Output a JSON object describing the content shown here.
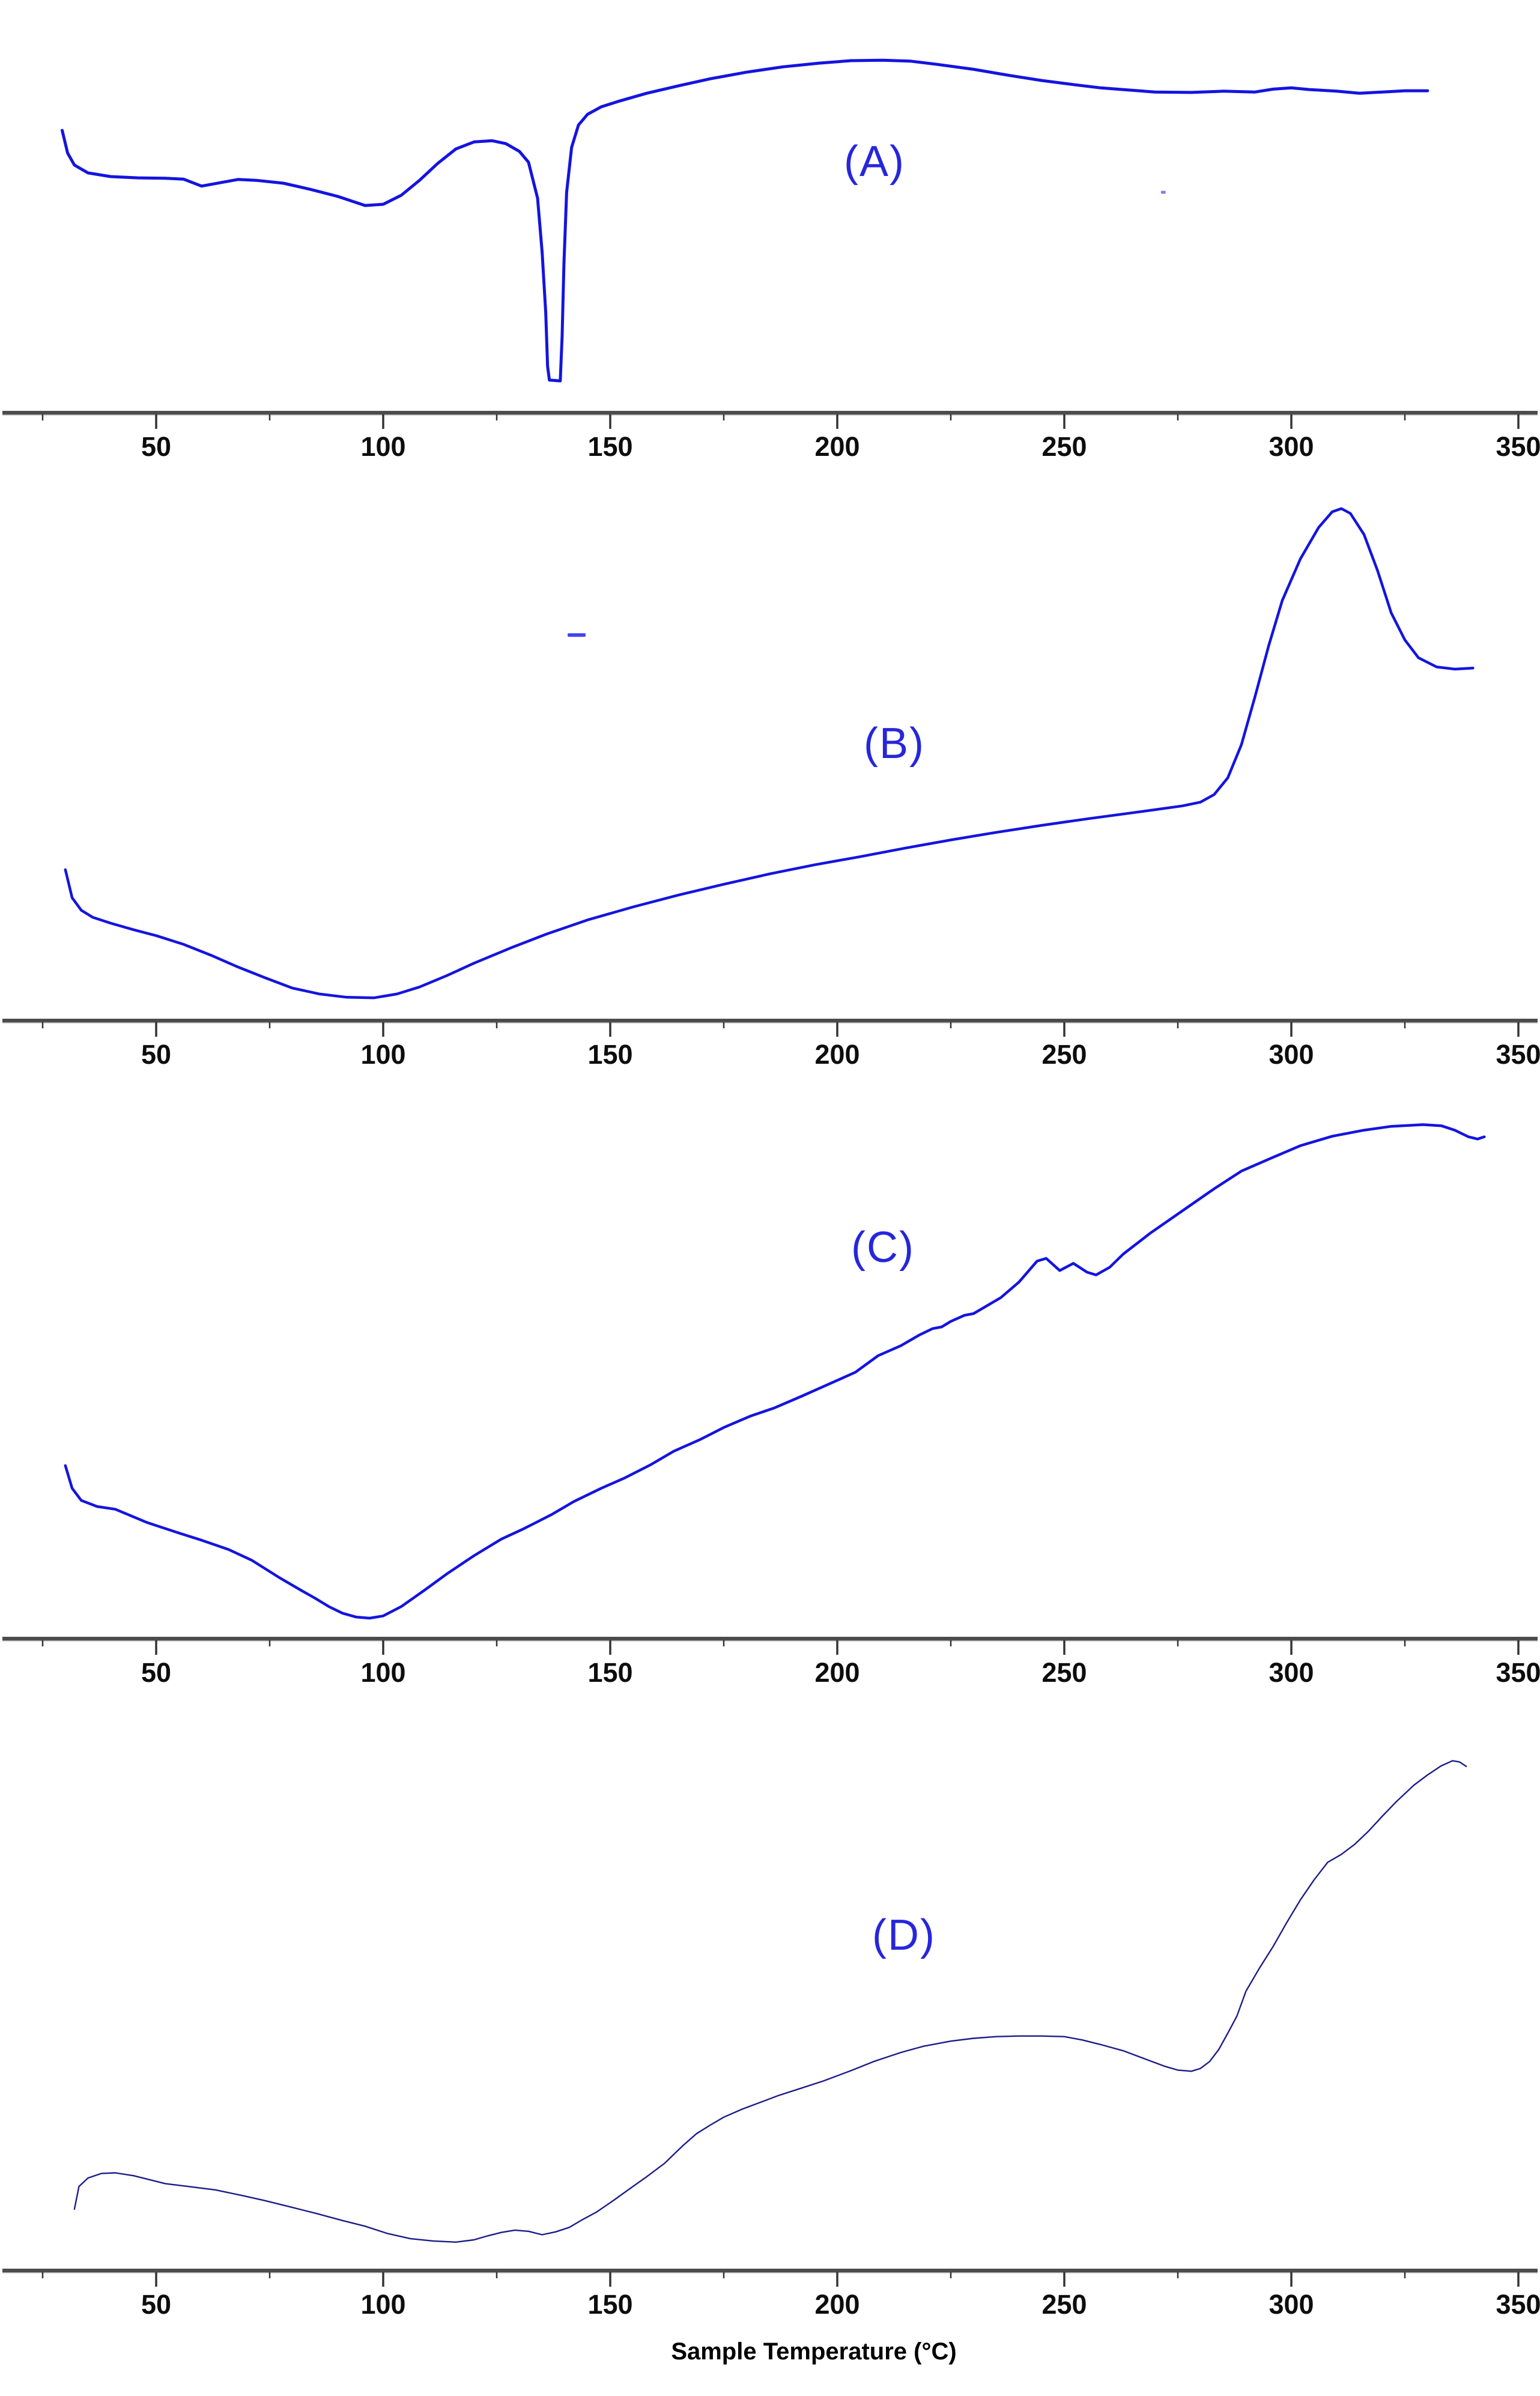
{
  "figure": {
    "xlabel": "Sample Temperature (°C)",
    "x_ticks": [
      50,
      100,
      150,
      200,
      250,
      300,
      350
    ],
    "x_minor_step": 25,
    "x_range": [
      20,
      362
    ],
    "y_axis_note": "no y-axis shown; heat flow in arbitrary units normalized 0-100 per panel"
  },
  "colors": {
    "curve_bright_blue": "#1414e0",
    "curve_dark_navy": "#1c1c8a",
    "panel_label_blue": "#2626dd",
    "axis_line": "#4c4c4c",
    "axis_underline": "#a8a8a8",
    "tick_mark": "#333333",
    "tick_text": "#0d0d0d"
  },
  "chart_data": [
    {
      "id": "A",
      "label": "(A)",
      "type": "line",
      "color": "#1414e0",
      "xlim": [
        20,
        362
      ],
      "ylim": [
        0,
        100
      ],
      "x_unit": "°C",
      "y_unit": "heat flow (arb. units)",
      "features": "sharp endothermic melting dip at ~137 °C, broad maximum near 205 °C",
      "points": [
        [
          29.3,
          68.4
        ],
        [
          30.5,
          62.9
        ],
        [
          32,
          60.0
        ],
        [
          35,
          58.1
        ],
        [
          40,
          57.2
        ],
        [
          46,
          56.9
        ],
        [
          52,
          56.8
        ],
        [
          56,
          56.6
        ],
        [
          60,
          54.9
        ],
        [
          63,
          55.5
        ],
        [
          68,
          56.5
        ],
        [
          72,
          56.3
        ],
        [
          78,
          55.6
        ],
        [
          84,
          54.1
        ],
        [
          90,
          52.4
        ],
        [
          96,
          50.2
        ],
        [
          100,
          50.5
        ],
        [
          104,
          52.7
        ],
        [
          108,
          56.3
        ],
        [
          112,
          60.4
        ],
        [
          116,
          63.9
        ],
        [
          120,
          65.6
        ],
        [
          124,
          65.9
        ],
        [
          127,
          65.2
        ],
        [
          130,
          63.3
        ],
        [
          132,
          60.7
        ],
        [
          134,
          52.0
        ],
        [
          135,
          38.9
        ],
        [
          135.8,
          24.3
        ],
        [
          136.2,
          11.2
        ],
        [
          136.6,
          7.9
        ],
        [
          139,
          7.7
        ],
        [
          139.4,
          18.5
        ],
        [
          139.8,
          36.0
        ],
        [
          140.4,
          53.4
        ],
        [
          141.5,
          64.3
        ],
        [
          143,
          69.7
        ],
        [
          145,
          72.3
        ],
        [
          148,
          74.1
        ],
        [
          152,
          75.5
        ],
        [
          158,
          77.4
        ],
        [
          165,
          79.2
        ],
        [
          172,
          80.9
        ],
        [
          180,
          82.5
        ],
        [
          188,
          83.8
        ],
        [
          196,
          84.7
        ],
        [
          203,
          85.3
        ],
        [
          210,
          85.4
        ],
        [
          216,
          85.2
        ],
        [
          222,
          84.4
        ],
        [
          230,
          83.2
        ],
        [
          238,
          81.7
        ],
        [
          245,
          80.5
        ],
        [
          252,
          79.5
        ],
        [
          258,
          78.7
        ],
        [
          264,
          78.2
        ],
        [
          270,
          77.7
        ],
        [
          278,
          77.6
        ],
        [
          285,
          77.9
        ],
        [
          292,
          77.7
        ],
        [
          296,
          78.4
        ],
        [
          300,
          78.7
        ],
        [
          304,
          78.3
        ],
        [
          310,
          77.9
        ],
        [
          315,
          77.4
        ],
        [
          320,
          77.7
        ],
        [
          325,
          78.0
        ],
        [
          330,
          78.0
        ]
      ]
    },
    {
      "id": "B",
      "label": "(B)",
      "type": "line",
      "color": "#1414e0",
      "xlim": [
        20,
        362
      ],
      "ylim": [
        0,
        100
      ],
      "x_unit": "°C",
      "y_unit": "heat flow (arb. units)",
      "features": "broad minimum near 95 °C, large exothermic peak at ~310 °C",
      "points": [
        [
          30,
          27.9
        ],
        [
          31.5,
          22.7
        ],
        [
          33.5,
          20.4
        ],
        [
          36,
          19.1
        ],
        [
          40,
          18.0
        ],
        [
          45,
          16.8
        ],
        [
          50,
          15.7
        ],
        [
          56,
          14.1
        ],
        [
          62,
          12.1
        ],
        [
          68,
          9.9
        ],
        [
          74,
          7.9
        ],
        [
          80,
          6.0
        ],
        [
          86,
          4.9
        ],
        [
          92,
          4.3
        ],
        [
          98,
          4.2
        ],
        [
          103,
          4.9
        ],
        [
          108,
          6.2
        ],
        [
          114,
          8.3
        ],
        [
          120,
          10.6
        ],
        [
          128,
          13.4
        ],
        [
          136,
          16.0
        ],
        [
          145,
          18.6
        ],
        [
          155,
          21.0
        ],
        [
          165,
          23.2
        ],
        [
          175,
          25.2
        ],
        [
          185,
          27.1
        ],
        [
          195,
          28.8
        ],
        [
          205,
          30.3
        ],
        [
          215,
          31.9
        ],
        [
          225,
          33.4
        ],
        [
          235,
          34.8
        ],
        [
          245,
          36.1
        ],
        [
          255,
          37.3
        ],
        [
          263,
          38.2
        ],
        [
          270,
          39.0
        ],
        [
          276,
          39.7
        ],
        [
          280,
          40.4
        ],
        [
          283,
          41.8
        ],
        [
          286,
          44.9
        ],
        [
          289,
          51.0
        ],
        [
          292,
          59.9
        ],
        [
          295,
          69.3
        ],
        [
          298,
          77.7
        ],
        [
          302,
          85.4
        ],
        [
          306,
          91.2
        ],
        [
          309,
          94.1
        ],
        [
          311,
          94.7
        ],
        [
          313,
          93.8
        ],
        [
          316,
          89.9
        ],
        [
          319,
          83.2
        ],
        [
          322,
          75.4
        ],
        [
          325,
          70.4
        ],
        [
          328,
          67.1
        ],
        [
          332,
          65.4
        ],
        [
          336,
          65.0
        ],
        [
          340,
          65.2
        ]
      ]
    },
    {
      "id": "C",
      "label": "(C)",
      "type": "line",
      "color": "#1414e0",
      "xlim": [
        20,
        362
      ],
      "ylim": [
        0,
        100
      ],
      "x_unit": "°C",
      "y_unit": "heat flow (arb. units)",
      "features": "minimum near 95 °C, small step at ~222 °C, double wiggle 246-257 °C, plateau ~300-330 °C",
      "points": [
        [
          30,
          31.3
        ],
        [
          31.5,
          27.2
        ],
        [
          33.5,
          25.0
        ],
        [
          37,
          23.9
        ],
        [
          41,
          23.4
        ],
        [
          48,
          21.0
        ],
        [
          55,
          19.1
        ],
        [
          60,
          17.8
        ],
        [
          66,
          16.1
        ],
        [
          71,
          14.2
        ],
        [
          77,
          11.1
        ],
        [
          82,
          8.7
        ],
        [
          85,
          7.3
        ],
        [
          88,
          5.8
        ],
        [
          91,
          4.6
        ],
        [
          94,
          3.9
        ],
        [
          97,
          3.7
        ],
        [
          100,
          4.1
        ],
        [
          104,
          5.8
        ],
        [
          109,
          8.7
        ],
        [
          114,
          11.7
        ],
        [
          120,
          15.0
        ],
        [
          126,
          18.0
        ],
        [
          131,
          19.9
        ],
        [
          137,
          22.4
        ],
        [
          142,
          24.8
        ],
        [
          148,
          27.2
        ],
        [
          153,
          29.0
        ],
        [
          159,
          31.5
        ],
        [
          164,
          33.9
        ],
        [
          170,
          36.1
        ],
        [
          175,
          38.2
        ],
        [
          181,
          40.3
        ],
        [
          186,
          41.7
        ],
        [
          192,
          43.8
        ],
        [
          198,
          46.0
        ],
        [
          204,
          48.2
        ],
        [
          209,
          51.2
        ],
        [
          214,
          53.0
        ],
        [
          218,
          54.9
        ],
        [
          221,
          56.1
        ],
        [
          223,
          56.4
        ],
        [
          225,
          57.4
        ],
        [
          228,
          58.5
        ],
        [
          230,
          58.8
        ],
        [
          236,
          61.7
        ],
        [
          240,
          64.5
        ],
        [
          244,
          68.3
        ],
        [
          246,
          68.8
        ],
        [
          249,
          66.6
        ],
        [
          252,
          67.9
        ],
        [
          255,
          66.3
        ],
        [
          257,
          65.8
        ],
        [
          260,
          67.2
        ],
        [
          263,
          69.6
        ],
        [
          269,
          73.4
        ],
        [
          276,
          77.4
        ],
        [
          283,
          81.4
        ],
        [
          289,
          84.6
        ],
        [
          296,
          87.1
        ],
        [
          302,
          89.2
        ],
        [
          309,
          90.9
        ],
        [
          316,
          92.0
        ],
        [
          322,
          92.7
        ],
        [
          329,
          93.0
        ],
        [
          333,
          92.8
        ],
        [
          336,
          92.0
        ],
        [
          339,
          90.8
        ],
        [
          341,
          90.4
        ],
        [
          342.5,
          90.8
        ]
      ]
    },
    {
      "id": "D",
      "label": "(D)",
      "type": "line",
      "color": "#1c1c8a",
      "xlim": [
        20,
        362
      ],
      "ylim": [
        0,
        100
      ],
      "x_unit": "°C",
      "y_unit": "heat flow (arb. units)",
      "features": "shallow minimum ~112 °C with small bump ~130 °C, broad hump ~240-250 °C, dip ~278 °C, steep rise to ~336 °C",
      "points": [
        [
          32,
          10.8
        ],
        [
          33,
          14.8
        ],
        [
          35,
          16.3
        ],
        [
          38,
          17.1
        ],
        [
          41,
          17.2
        ],
        [
          45,
          16.7
        ],
        [
          52,
          15.3
        ],
        [
          58,
          14.7
        ],
        [
          63,
          14.2
        ],
        [
          69,
          13.2
        ],
        [
          74,
          12.3
        ],
        [
          80,
          11.1
        ],
        [
          85,
          10.1
        ],
        [
          91,
          8.8
        ],
        [
          96,
          7.8
        ],
        [
          101,
          6.5
        ],
        [
          106,
          5.6
        ],
        [
          111,
          5.2
        ],
        [
          116,
          5.0
        ],
        [
          120,
          5.4
        ],
        [
          123,
          6.1
        ],
        [
          126,
          6.7
        ],
        [
          129,
          7.1
        ],
        [
          132,
          6.9
        ],
        [
          135,
          6.3
        ],
        [
          138,
          6.8
        ],
        [
          141,
          7.6
        ],
        [
          144,
          9.0
        ],
        [
          147,
          10.3
        ],
        [
          151,
          12.5
        ],
        [
          155,
          14.8
        ],
        [
          158,
          16.5
        ],
        [
          162,
          18.9
        ],
        [
          166,
          22.0
        ],
        [
          169,
          24.1
        ],
        [
          172,
          25.6
        ],
        [
          175,
          27.0
        ],
        [
          179,
          28.4
        ],
        [
          183,
          29.6
        ],
        [
          187,
          30.8
        ],
        [
          192,
          32.1
        ],
        [
          197,
          33.4
        ],
        [
          203,
          35.2
        ],
        [
          208,
          36.8
        ],
        [
          214,
          38.4
        ],
        [
          219,
          39.5
        ],
        [
          225,
          40.4
        ],
        [
          230,
          40.9
        ],
        [
          235,
          41.2
        ],
        [
          240,
          41.3
        ],
        [
          245,
          41.3
        ],
        [
          250,
          41.2
        ],
        [
          254,
          40.6
        ],
        [
          258,
          39.8
        ],
        [
          263,
          38.7
        ],
        [
          268,
          37.2
        ],
        [
          272,
          36.0
        ],
        [
          275,
          35.3
        ],
        [
          278,
          35.1
        ],
        [
          280,
          35.6
        ],
        [
          282,
          36.8
        ],
        [
          284,
          38.9
        ],
        [
          286,
          41.8
        ],
        [
          288,
          44.8
        ],
        [
          290,
          49.2
        ],
        [
          293,
          53.3
        ],
        [
          296,
          57.1
        ],
        [
          299,
          61.3
        ],
        [
          302,
          65.3
        ],
        [
          305,
          68.8
        ],
        [
          308,
          71.9
        ],
        [
          311,
          73.3
        ],
        [
          314,
          75.1
        ],
        [
          317,
          77.4
        ],
        [
          320,
          80.0
        ],
        [
          323,
          82.5
        ],
        [
          327,
          85.5
        ],
        [
          330,
          87.3
        ],
        [
          333,
          88.9
        ],
        [
          335.5,
          89.8
        ],
        [
          337,
          89.6
        ],
        [
          338.5,
          88.8
        ]
      ]
    }
  ],
  "annotations": {
    "artifacts": [
      {
        "panel": "A",
        "type": "dot",
        "x_temp": 271.8,
        "v": 53.4,
        "color": "#6a6aee"
      },
      {
        "panel": "B",
        "type": "dash",
        "x_temp": 142.6,
        "v": 71.3,
        "color": "#2222ee"
      }
    ]
  }
}
